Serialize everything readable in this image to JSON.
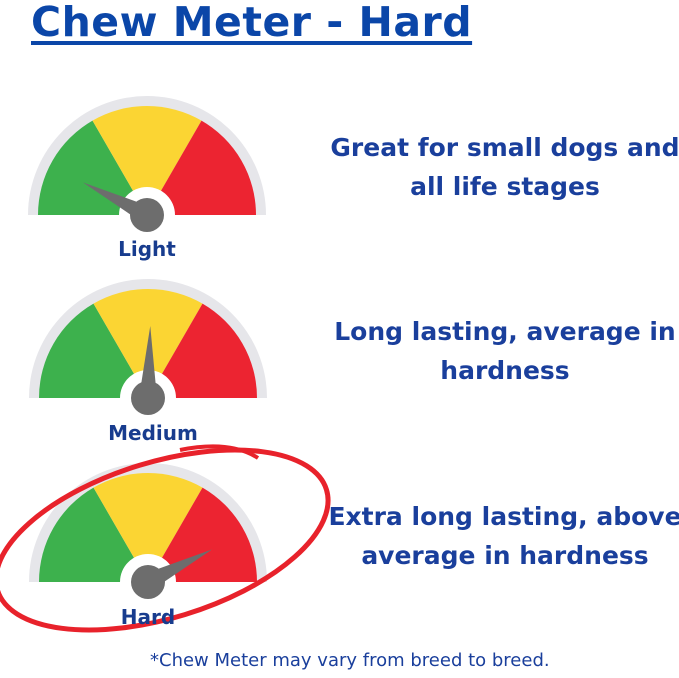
{
  "title": "Chew Meter - Hard",
  "colors": {
    "title": "#0b46a8",
    "green": "#3db14d",
    "yellow": "#fbd533",
    "red": "#ec2431",
    "needle": "#6d6d6d",
    "track": "#e6e6ea",
    "circle": "#e8222b"
  },
  "gauges": [
    {
      "label": "Light",
      "needle_level": 0.15,
      "description": [
        "Great for small dogs and",
        "all life stages"
      ]
    },
    {
      "label": "Medium",
      "needle_level": 0.51,
      "description": [
        "Long lasting, average in",
        "hardness"
      ]
    },
    {
      "label": "Hard",
      "needle_level": 0.85,
      "description": [
        "Extra long lasting, above",
        "average in hardness"
      ],
      "circled": true
    }
  ],
  "footnote": "*Chew Meter may vary from breed to breed."
}
